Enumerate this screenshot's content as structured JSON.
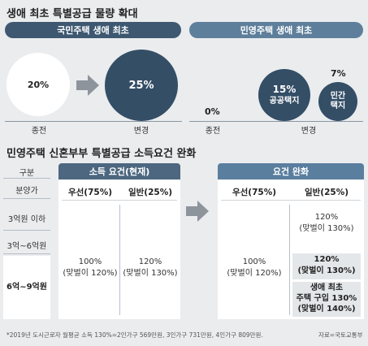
{
  "section1": {
    "title": "생애 최초 특별공급 물량 확대",
    "national": {
      "pill": "국민주택 생애 최초",
      "before_value": "20%",
      "after_value": "25%",
      "before_label": "종전",
      "after_label": "변경"
    },
    "private": {
      "pill": "민영주택 생애 최초",
      "before_value": "0%",
      "before_label": "종전",
      "after_label": "변경",
      "public_value": "15%",
      "public_label": "공공택지",
      "private_value": "7%",
      "private_label_1": "민간",
      "private_label_2": "택지"
    }
  },
  "section2": {
    "title": "민영주택 신혼부부 특별공급 소득요건 완화",
    "row_header": "구분",
    "rows": [
      "분양가",
      "3억원 이하",
      "3억~6억원",
      "6억~9억원"
    ],
    "current": {
      "header": "소득 요건(현재)",
      "col_priority": "우선(75%)",
      "col_general": "일반(25%)",
      "priority_value_1": "100%",
      "priority_value_2": "(맞벌이 120%)",
      "general_value_1": "120%",
      "general_value_2": "(맞벌이 130%)"
    },
    "relaxed": {
      "header": "요건 완화",
      "col_priority": "우선(75%)",
      "col_general": "일반(25%)",
      "priority_value_1": "100%",
      "priority_value_2": "(맞벌이 120%)",
      "general_row1_1": "120%",
      "general_row1_2": "(맞벌이 130%)",
      "general_row2_1": "120%",
      "general_row2_2": "(맞벌이 130%)",
      "general_row3_1": "생애 최초",
      "general_row3_2": "주택 구입 130%",
      "general_row3_3": "(맞벌이 140%)"
    }
  },
  "footnote": "*2019년 도시근로자 월평균 소득 130%=2인가구 569만원, 3인가구 731만원, 4인가구 809만원.",
  "source": "자료=국토교통부",
  "colors": {
    "pill_dark": "#3d5870",
    "pill_mid": "#5e7f9b",
    "circle_dark": "#344e66"
  }
}
